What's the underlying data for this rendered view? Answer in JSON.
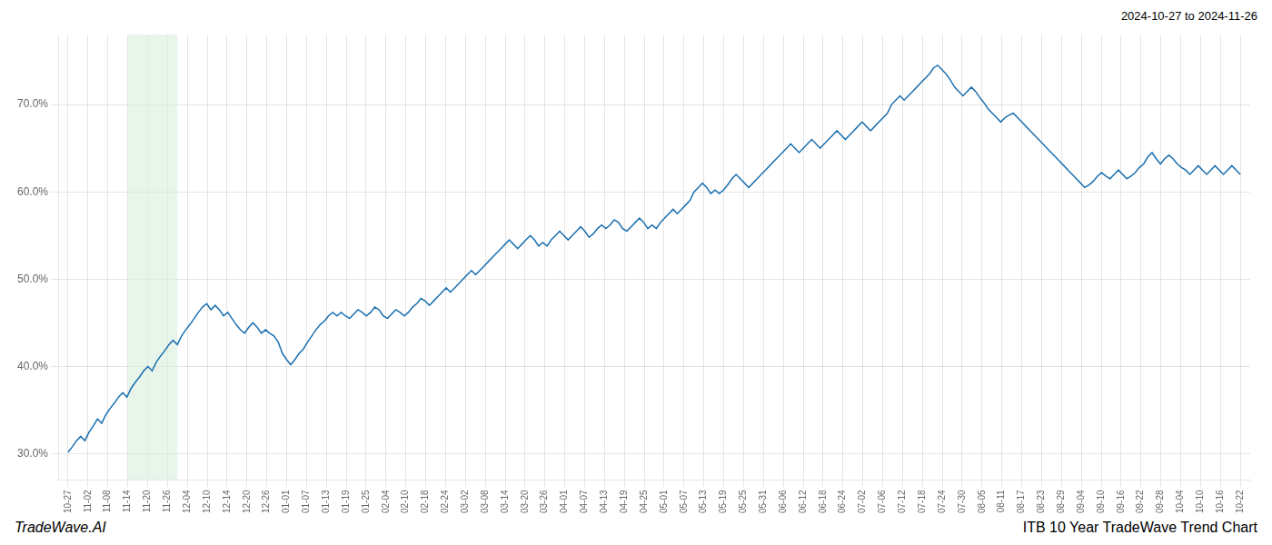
{
  "chart_data": {
    "type": "line",
    "title": "ITB 10 Year TradeWave Trend Chart",
    "subtitle": "2024-10-27 to 2024-11-26",
    "annotation": "TradeWave.AI",
    "color": "#1a6faf",
    "grid": true,
    "shade": {
      "x_start": 3,
      "x_end": 5.5,
      "color": "#d4edda"
    },
    "xlim": [
      -0.5,
      59.5
    ],
    "xticks": [
      {
        "value": 0,
        "label": "10-27"
      },
      {
        "value": 1,
        "label": "11-02"
      },
      {
        "value": 2,
        "label": "11-08"
      },
      {
        "value": 3,
        "label": "11-14"
      },
      {
        "value": 4,
        "label": "11-20"
      },
      {
        "value": 5,
        "label": "11-26"
      },
      {
        "value": 6,
        "label": "12-04"
      },
      {
        "value": 7,
        "label": "12-10"
      },
      {
        "value": 8,
        "label": "12-14"
      },
      {
        "value": 9,
        "label": "12-20"
      },
      {
        "value": 10,
        "label": "12-26"
      },
      {
        "value": 11,
        "label": "01-01"
      },
      {
        "value": 12,
        "label": "01-07"
      },
      {
        "value": 13,
        "label": "01-13"
      },
      {
        "value": 14,
        "label": "01-19"
      },
      {
        "value": 15,
        "label": "01-25"
      },
      {
        "value": 16,
        "label": "02-04"
      },
      {
        "value": 17,
        "label": "02-10"
      },
      {
        "value": 18,
        "label": "02-18"
      },
      {
        "value": 19,
        "label": "02-24"
      },
      {
        "value": 20,
        "label": "03-02"
      },
      {
        "value": 21,
        "label": "03-08"
      },
      {
        "value": 22,
        "label": "03-14"
      },
      {
        "value": 23,
        "label": "03-20"
      },
      {
        "value": 24,
        "label": "03-26"
      },
      {
        "value": 25,
        "label": "04-01"
      },
      {
        "value": 26,
        "label": "04-07"
      },
      {
        "value": 27,
        "label": "04-13"
      },
      {
        "value": 28,
        "label": "04-19"
      },
      {
        "value": 29,
        "label": "04-25"
      },
      {
        "value": 30,
        "label": "05-01"
      },
      {
        "value": 31,
        "label": "05-07"
      },
      {
        "value": 32,
        "label": "05-13"
      },
      {
        "value": 33,
        "label": "05-19"
      },
      {
        "value": 34,
        "label": "05-25"
      },
      {
        "value": 35,
        "label": "05-31"
      },
      {
        "value": 36,
        "label": "06-06"
      },
      {
        "value": 37,
        "label": "06-12"
      },
      {
        "value": 38,
        "label": "06-18"
      },
      {
        "value": 39,
        "label": "06-24"
      },
      {
        "value": 40,
        "label": "07-02"
      },
      {
        "value": 41,
        "label": "07-06"
      },
      {
        "value": 42,
        "label": "07-12"
      },
      {
        "value": 43,
        "label": "07-18"
      },
      {
        "value": 44,
        "label": "07-24"
      },
      {
        "value": 45,
        "label": "07-30"
      },
      {
        "value": 46,
        "label": "08-05"
      },
      {
        "value": 47,
        "label": "08-11"
      },
      {
        "value": 48,
        "label": "08-17"
      },
      {
        "value": 49,
        "label": "08-23"
      },
      {
        "value": 50,
        "label": "08-29"
      },
      {
        "value": 51,
        "label": "09-04"
      },
      {
        "value": 52,
        "label": "09-10"
      },
      {
        "value": 53,
        "label": "09-16"
      },
      {
        "value": 54,
        "label": "09-22"
      },
      {
        "value": 55,
        "label": "09-28"
      },
      {
        "value": 56,
        "label": "10-04"
      },
      {
        "value": 57,
        "label": "10-10"
      },
      {
        "value": 58,
        "label": "10-16"
      },
      {
        "value": 59,
        "label": "10-22"
      }
    ],
    "ylim": [
      27.0,
      78.0
    ],
    "yticks": [
      {
        "value": 30.0,
        "label": "30.0%"
      },
      {
        "value": 40.0,
        "label": "40.0%"
      },
      {
        "value": 50.0,
        "label": "50.0%"
      },
      {
        "value": 60.0,
        "label": "60.0%"
      },
      {
        "value": 70.0,
        "label": "70.0%"
      }
    ],
    "values": [
      30.2,
      30.8,
      31.5,
      32.0,
      31.5,
      32.5,
      33.2,
      34.0,
      33.5,
      34.5,
      35.2,
      35.8,
      36.5,
      37.0,
      36.5,
      37.5,
      38.2,
      38.8,
      39.5,
      40.0,
      39.5,
      40.5,
      41.2,
      41.8,
      42.5,
      43.0,
      42.5,
      43.5,
      44.2,
      44.8,
      45.5,
      46.2,
      46.8,
      47.2,
      46.5,
      47.0,
      46.5,
      45.8,
      46.2,
      45.5,
      44.8,
      44.2,
      43.8,
      44.5,
      45.0,
      44.5,
      43.8,
      44.2,
      43.8,
      43.5,
      42.8,
      41.5,
      40.8,
      40.2,
      40.8,
      41.5,
      42.0,
      42.8,
      43.5,
      44.2,
      44.8,
      45.2,
      45.8,
      46.2,
      45.8,
      46.2,
      45.8,
      45.5,
      46.0,
      46.5,
      46.2,
      45.8,
      46.2,
      46.8,
      46.5,
      45.8,
      45.5,
      46.0,
      46.5,
      46.2,
      45.8,
      46.2,
      46.8,
      47.2,
      47.8,
      47.5,
      47.0,
      47.5,
      48.0,
      48.5,
      49.0,
      48.5,
      49.0,
      49.5,
      50.0,
      50.5,
      51.0,
      50.5,
      51.0,
      51.5,
      52.0,
      52.5,
      53.0,
      53.5,
      54.0,
      54.5,
      54.0,
      53.5,
      54.0,
      54.5,
      55.0,
      54.5,
      53.8,
      54.2,
      53.8,
      54.5,
      55.0,
      55.5,
      55.0,
      54.5,
      55.0,
      55.5,
      56.0,
      55.5,
      54.8,
      55.2,
      55.8,
      56.2,
      55.8,
      56.2,
      56.8,
      56.5,
      55.8,
      55.5,
      56.0,
      56.5,
      57.0,
      56.5,
      55.8,
      56.2,
      55.8,
      56.5,
      57.0,
      57.5,
      58.0,
      57.5,
      58.0,
      58.5,
      59.0,
      60.0,
      60.5,
      61.0,
      60.5,
      59.8,
      60.2,
      59.8,
      60.2,
      60.8,
      61.5,
      62.0,
      61.5,
      61.0,
      60.5,
      61.0,
      61.5,
      62.0,
      62.5,
      63.0,
      63.5,
      64.0,
      64.5,
      65.0,
      65.5,
      65.0,
      64.5,
      65.0,
      65.5,
      66.0,
      65.5,
      65.0,
      65.5,
      66.0,
      66.5,
      67.0,
      66.5,
      66.0,
      66.5,
      67.0,
      67.5,
      68.0,
      67.5,
      67.0,
      67.5,
      68.0,
      68.5,
      69.0,
      70.0,
      70.5,
      71.0,
      70.5,
      71.0,
      71.5,
      72.0,
      72.5,
      73.0,
      73.5,
      74.2,
      74.5,
      74.0,
      73.5,
      72.8,
      72.0,
      71.5,
      71.0,
      71.5,
      72.0,
      71.5,
      70.8,
      70.2,
      69.5,
      69.0,
      68.5,
      68.0,
      68.5,
      68.8,
      69.0,
      68.5,
      68.0,
      67.5,
      67.0,
      66.5,
      66.0,
      65.5,
      65.0,
      64.5,
      64.0,
      63.5,
      63.0,
      62.5,
      62.0,
      61.5,
      61.0,
      60.5,
      60.8,
      61.2,
      61.8,
      62.2,
      61.8,
      61.5,
      62.0,
      62.5,
      62.0,
      61.5,
      61.8,
      62.2,
      62.8,
      63.2,
      64.0,
      64.5,
      63.8,
      63.2,
      63.8,
      64.2,
      63.8,
      63.2,
      62.8,
      62.5,
      62.0,
      62.5,
      63.0,
      62.5,
      62.0,
      62.5,
      63.0,
      62.5,
      62.0,
      62.5,
      63.0,
      62.5,
      62.0
    ]
  }
}
